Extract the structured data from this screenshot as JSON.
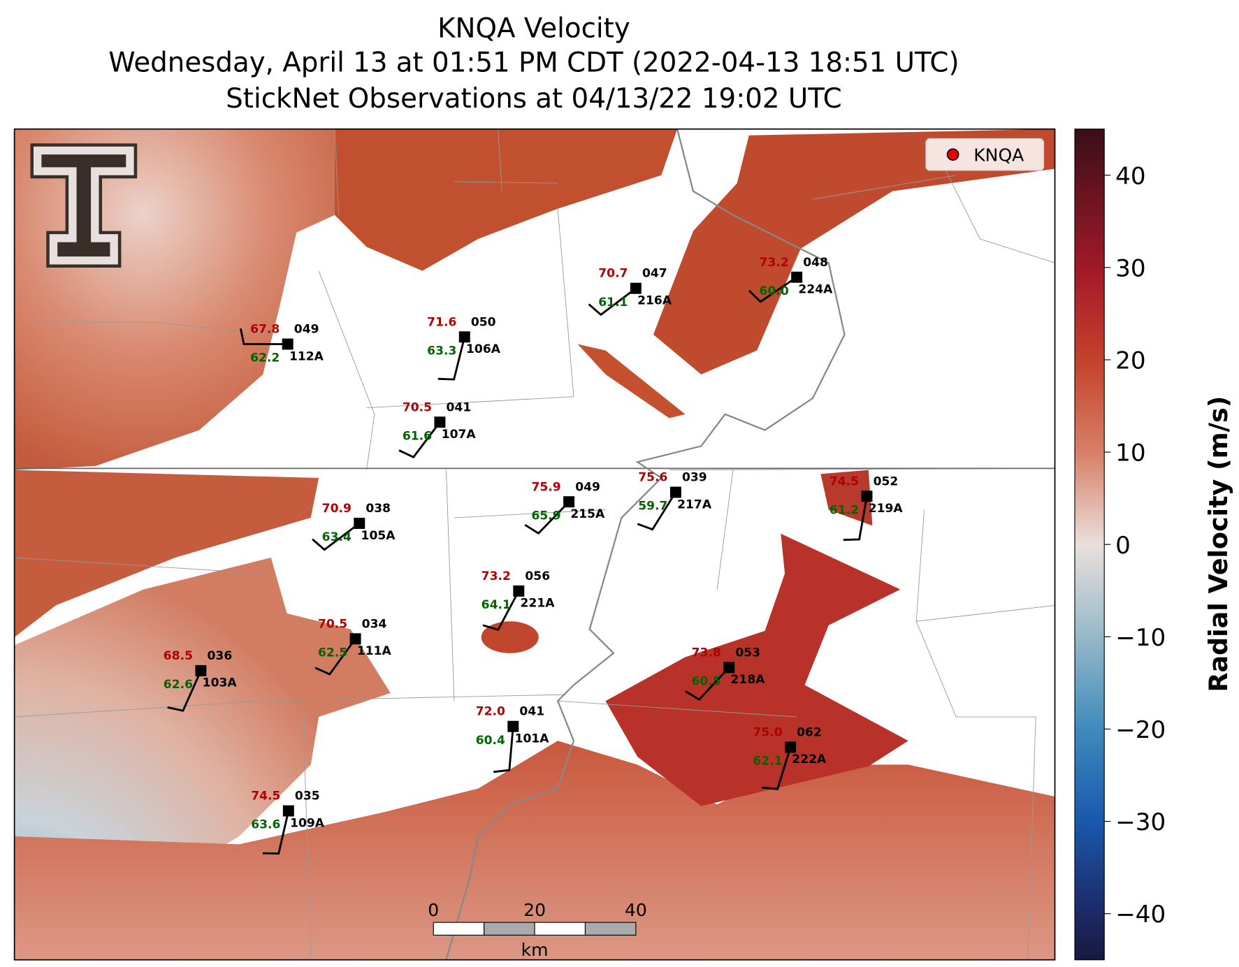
{
  "header": {
    "title": "KNQA Velocity",
    "subtitle": "Wednesday, April 13 at 01:51 PM CDT (2022-04-13 18:51 UTC)",
    "subtitle2": "StickNet Observations at 04/13/22 19:02 UTC"
  },
  "legend": {
    "label": "KNQA"
  },
  "colorbar": {
    "label": "Radial Velocity (m/s)",
    "vlim": [
      -45,
      45
    ],
    "ticks": [
      {
        "value": -40,
        "label": "−40"
      },
      {
        "value": -30,
        "label": "−30"
      },
      {
        "value": -20,
        "label": "−20"
      },
      {
        "value": -10,
        "label": "−10"
      },
      0,
      10,
      20,
      30,
      40
    ]
  },
  "scale_bar": {
    "unit": "km",
    "xlim": [
      0,
      40
    ],
    "ticks": [
      0,
      20,
      40
    ]
  },
  "stations": [
    {
      "temp": "67.8",
      "code": "049",
      "dew": "62.2",
      "id": "112A"
    },
    {
      "temp": "71.6",
      "code": "050",
      "dew": "63.3",
      "id": "106A"
    },
    {
      "temp": "70.7",
      "code": "047",
      "dew": "61.1",
      "id": "216A"
    },
    {
      "temp": "73.2",
      "code": "048",
      "dew": "60.0",
      "id": "224A"
    },
    {
      "temp": "70.5",
      "code": "041",
      "dew": "61.6",
      "id": "107A"
    },
    {
      "temp": "75.9",
      "code": "049",
      "dew": "65.9",
      "id": "215A"
    },
    {
      "temp": "75.6",
      "code": "039",
      "dew": "59.7",
      "id": "217A"
    },
    {
      "temp": "74.5",
      "code": "052",
      "dew": "61.2",
      "id": "219A"
    },
    {
      "temp": "70.9",
      "code": "038",
      "dew": "63.4",
      "id": "105A"
    },
    {
      "temp": "73.2",
      "code": "056",
      "dew": "64.1",
      "id": "221A"
    },
    {
      "temp": "70.5",
      "code": "034",
      "dew": "62.5",
      "id": "111A"
    },
    {
      "temp": "68.5",
      "code": "036",
      "dew": "62.6",
      "id": "103A"
    },
    {
      "temp": "73.8",
      "code": "053",
      "dew": "60.5",
      "id": "218A"
    },
    {
      "temp": "72.0",
      "code": "041",
      "dew": "60.4",
      "id": "101A"
    },
    {
      "temp": "75.0",
      "code": "062",
      "dew": "62.1",
      "id": "222A"
    },
    {
      "temp": "74.5",
      "code": "035",
      "dew": "63.6",
      "id": "109A"
    }
  ]
}
